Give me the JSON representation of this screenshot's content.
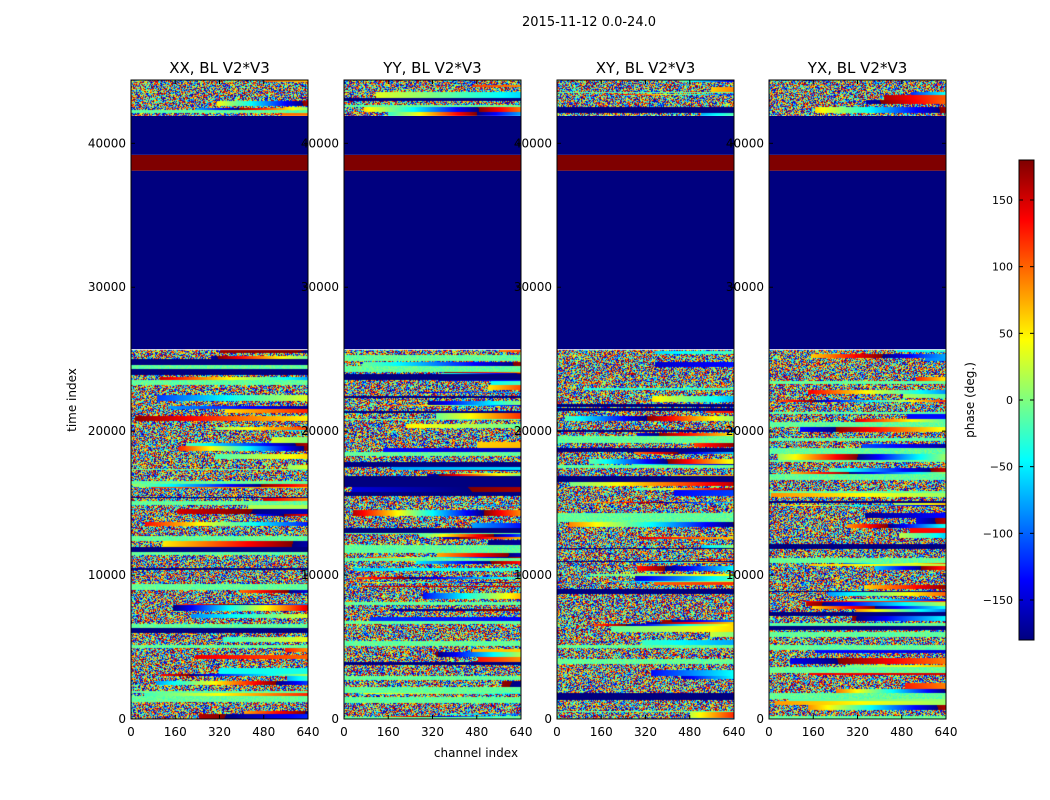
{
  "figure": {
    "suptitle": "2015-11-12 0.0-24.0",
    "xlabel": "channel index",
    "ylabel": "time index",
    "colorbar_label": "phase (deg.)"
  },
  "chart_data": {
    "type": "heatmap",
    "colormap": "jet",
    "colormap_stops": [
      "#00007f",
      "#0000ff",
      "#007fff",
      "#00ffff",
      "#7fff7f",
      "#ffff00",
      "#ff7f00",
      "#ff0000",
      "#7f0000"
    ],
    "vmin": -180,
    "vmax": 180,
    "colorbar_ticks": [
      150,
      100,
      50,
      0,
      -50,
      -100,
      -150
    ],
    "colorbar_tick_labels": [
      "150",
      "100",
      "50",
      "0",
      "−50",
      "−100",
      "−150"
    ],
    "xlim": [
      0,
      640
    ],
    "ylim": [
      0,
      44400
    ],
    "xticks": [
      0,
      160,
      320,
      480,
      640
    ],
    "xtick_labels": [
      "0",
      "160",
      "320",
      "480",
      "640"
    ],
    "yticks": [
      0,
      10000,
      20000,
      30000,
      40000
    ],
    "ytick_labels": [
      "0",
      "10000",
      "20000",
      "30000",
      "40000"
    ],
    "flagged_bands": [
      {
        "from": 25700,
        "to": 38100,
        "value": -180
      },
      {
        "from": 38100,
        "to": 39200,
        "value": 180
      },
      {
        "from": 39200,
        "to": 41900,
        "value": -180
      }
    ],
    "panels": [
      {
        "name": "xx",
        "title": "XX, BL V2*V3",
        "seed": 11
      },
      {
        "name": "yy",
        "title": "YY, BL V2*V3",
        "seed": 29
      },
      {
        "name": "xy",
        "title": "XY, BL V2*V3",
        "seed": 47
      },
      {
        "name": "yx",
        "title": "YX, BL V2*V3",
        "seed": 83
      }
    ]
  }
}
